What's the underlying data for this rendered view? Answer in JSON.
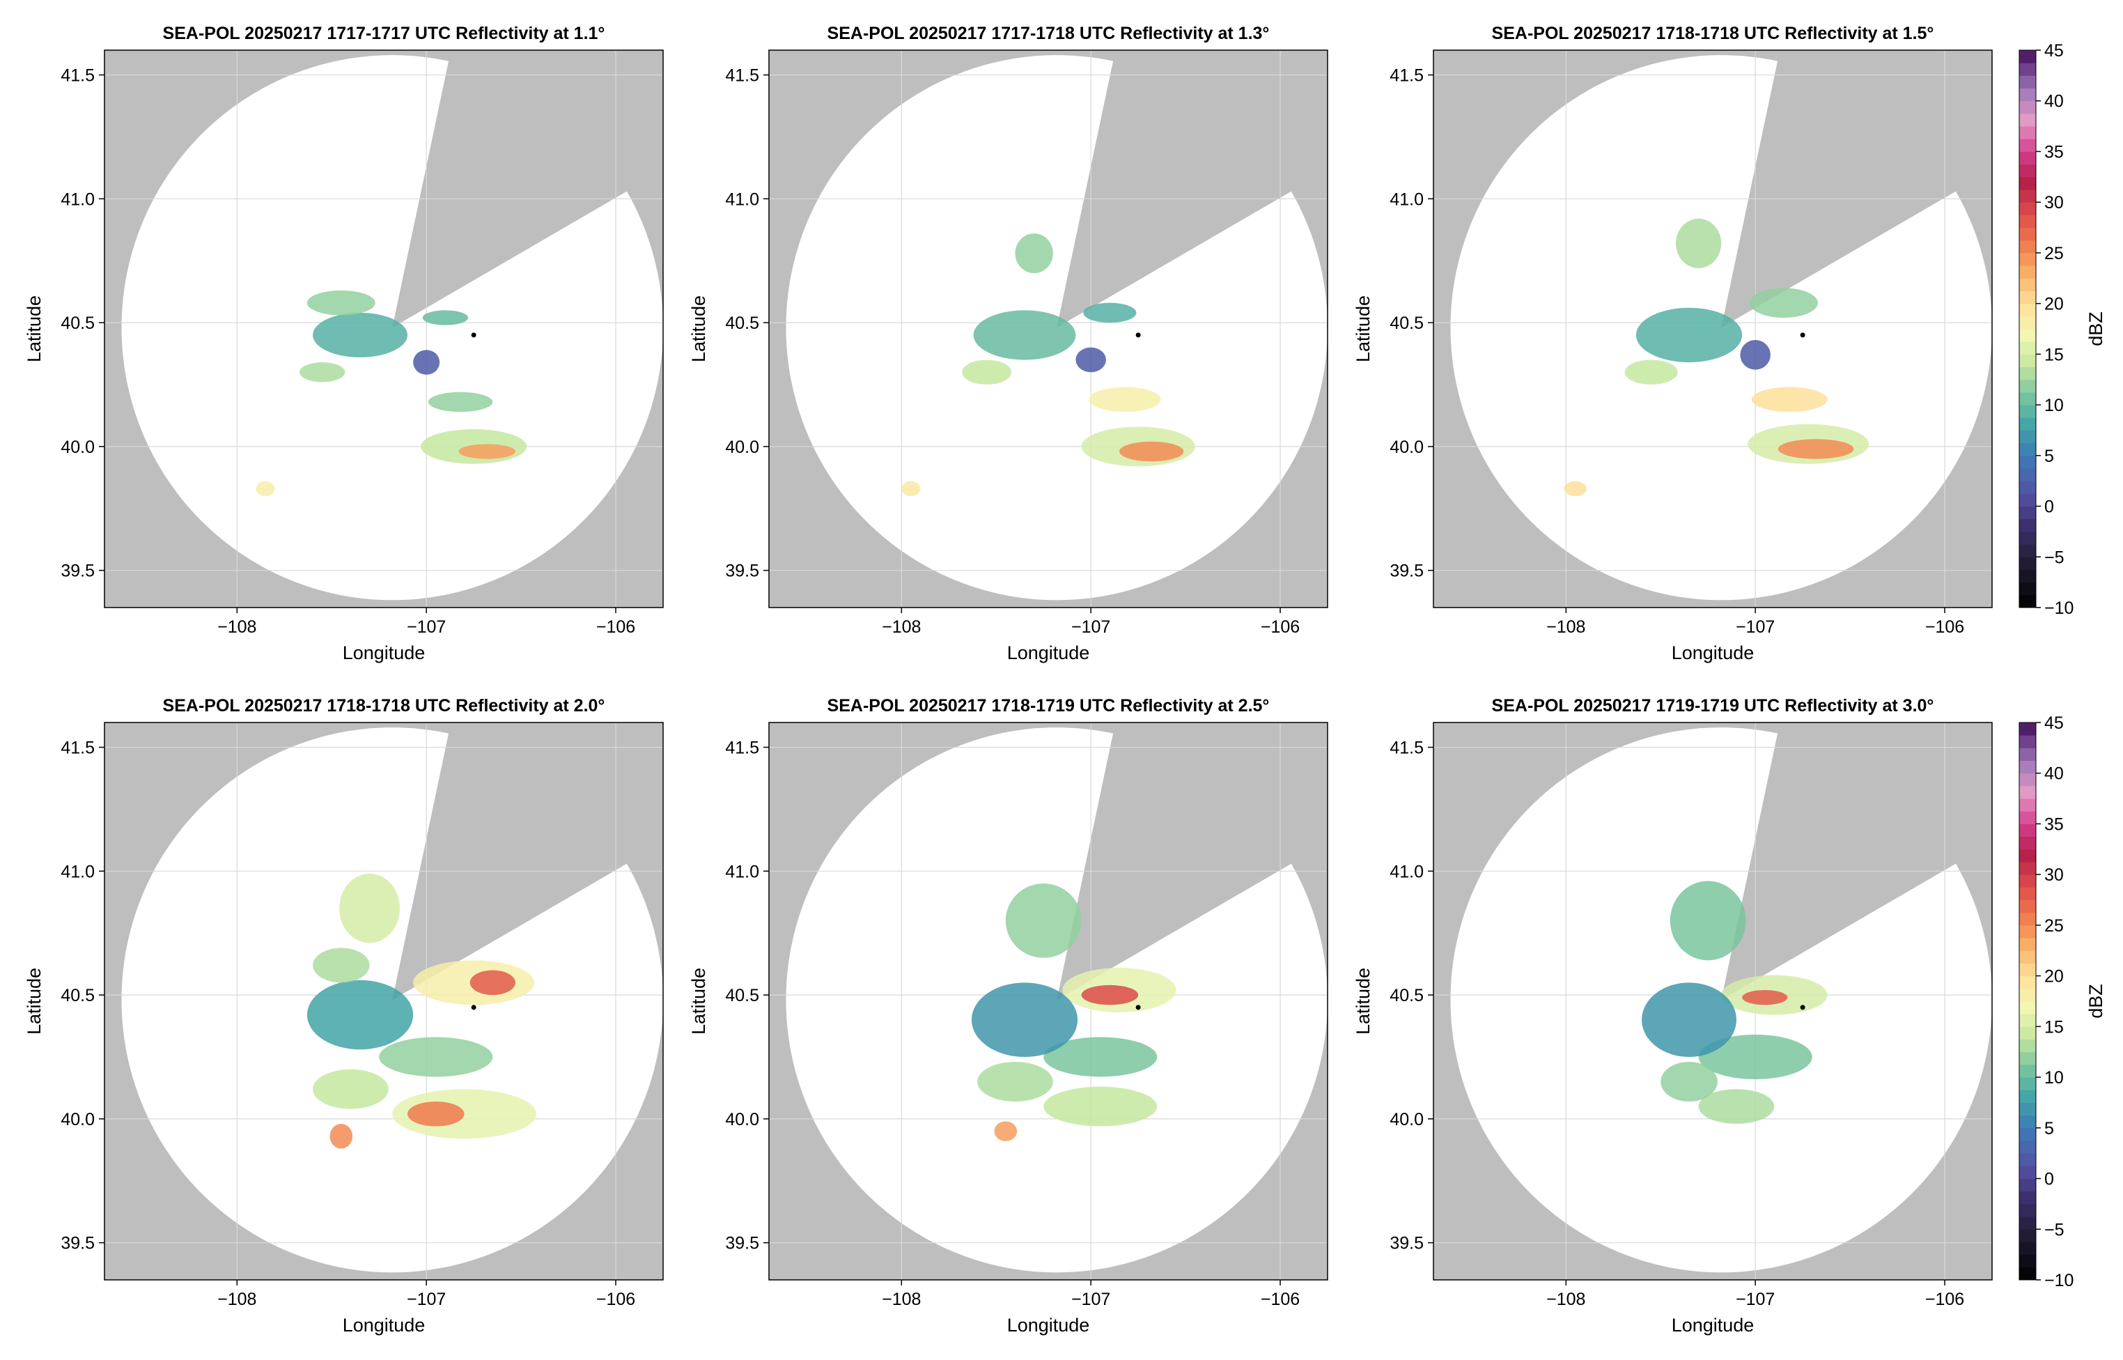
{
  "figure_title": "",
  "chart_data": [
    {
      "type": "heatmap",
      "title": "SEA-POL 20250217 1717-1717 UTC Reflectivity at 1.1°",
      "elevation_deg": 1.1,
      "xlabel": "Longitude",
      "ylabel": "Latitude",
      "xlim": [
        -108.7,
        -105.75
      ],
      "ylim": [
        39.35,
        41.6
      ],
      "xticks": [
        -108,
        -107,
        -106
      ],
      "xtick_labels": [
        "−108",
        "−107",
        "−106"
      ],
      "yticks": [
        39.5,
        40.0,
        40.5,
        41.0,
        41.5
      ],
      "ytick_labels": [
        "39.5",
        "40.0",
        "40.5",
        "41.0",
        "41.5"
      ],
      "grid": true,
      "radar_site": [
        -107.18,
        40.48
      ],
      "max_range_lon_deg": 1.43,
      "max_range_lat_deg": 1.1,
      "blocked_sectors_deg": [
        [
          12,
          60
        ]
      ],
      "point_marker": [
        -106.75,
        40.45
      ],
      "echoes": [
        {
          "lon": -106.75,
          "lat": 40.0,
          "rlon": 0.28,
          "rlat": 0.07,
          "dbz": 14
        },
        {
          "lon": -106.68,
          "lat": 39.98,
          "rlon": 0.15,
          "rlat": 0.03,
          "dbz": 24
        },
        {
          "lon": -106.82,
          "lat": 40.18,
          "rlon": 0.17,
          "rlat": 0.04,
          "dbz": 12
        },
        {
          "lon": -106.9,
          "lat": 40.52,
          "rlon": 0.12,
          "rlat": 0.03,
          "dbz": 10
        },
        {
          "lon": -107.35,
          "lat": 40.45,
          "rlon": 0.25,
          "rlat": 0.09,
          "dbz": 9
        },
        {
          "lon": -107.45,
          "lat": 40.58,
          "rlon": 0.18,
          "rlat": 0.05,
          "dbz": 12
        },
        {
          "lon": -107.55,
          "lat": 40.3,
          "rlon": 0.12,
          "rlat": 0.04,
          "dbz": 13
        },
        {
          "lon": -107.0,
          "lat": 40.34,
          "rlon": 0.07,
          "rlat": 0.05,
          "dbz": 2
        },
        {
          "lon": -107.85,
          "lat": 39.83,
          "rlon": 0.05,
          "rlat": 0.03,
          "dbz": 18
        }
      ]
    },
    {
      "type": "heatmap",
      "title": "SEA-POL 20250217 1717-1718 UTC Reflectivity at 1.3°",
      "elevation_deg": 1.3,
      "xlabel": "Longitude",
      "ylabel": "Latitude",
      "xlim": [
        -108.7,
        -105.75
      ],
      "ylim": [
        39.35,
        41.6
      ],
      "xticks": [
        -108,
        -107,
        -106
      ],
      "xtick_labels": [
        "−108",
        "−107",
        "−106"
      ],
      "yticks": [
        39.5,
        40.0,
        40.5,
        41.0,
        41.5
      ],
      "ytick_labels": [
        "39.5",
        "40.0",
        "40.5",
        "41.0",
        "41.5"
      ],
      "grid": true,
      "radar_site": [
        -107.18,
        40.48
      ],
      "max_range_lon_deg": 1.43,
      "max_range_lat_deg": 1.1,
      "blocked_sectors_deg": [
        [
          12,
          60
        ]
      ],
      "point_marker": [
        -106.75,
        40.45
      ],
      "echoes": [
        {
          "lon": -106.75,
          "lat": 40.0,
          "rlon": 0.3,
          "rlat": 0.08,
          "dbz": 15
        },
        {
          "lon": -106.68,
          "lat": 39.98,
          "rlon": 0.17,
          "rlat": 0.04,
          "dbz": 25
        },
        {
          "lon": -106.82,
          "lat": 40.19,
          "rlon": 0.19,
          "rlat": 0.05,
          "dbz": 18
        },
        {
          "lon": -106.9,
          "lat": 40.54,
          "rlon": 0.14,
          "rlat": 0.04,
          "dbz": 9
        },
        {
          "lon": -107.35,
          "lat": 40.45,
          "rlon": 0.27,
          "rlat": 0.1,
          "dbz": 10
        },
        {
          "lon": -107.3,
          "lat": 40.78,
          "rlon": 0.1,
          "rlat": 0.08,
          "dbz": 12
        },
        {
          "lon": -107.55,
          "lat": 40.3,
          "rlon": 0.13,
          "rlat": 0.05,
          "dbz": 14
        },
        {
          "lon": -107.0,
          "lat": 40.35,
          "rlon": 0.08,
          "rlat": 0.05,
          "dbz": 2
        },
        {
          "lon": -107.95,
          "lat": 39.83,
          "rlon": 0.05,
          "rlat": 0.03,
          "dbz": 19
        }
      ]
    },
    {
      "type": "heatmap",
      "title": "SEA-POL 20250217 1718-1718 UTC Reflectivity at 1.5°",
      "elevation_deg": 1.5,
      "xlabel": "Longitude",
      "ylabel": "Latitude",
      "xlim": [
        -108.7,
        -105.75
      ],
      "ylim": [
        39.35,
        41.6
      ],
      "xticks": [
        -108,
        -107,
        -106
      ],
      "xtick_labels": [
        "−108",
        "−107",
        "−106"
      ],
      "yticks": [
        39.5,
        40.0,
        40.5,
        41.0,
        41.5
      ],
      "ytick_labels": [
        "39.5",
        "40.0",
        "40.5",
        "41.0",
        "41.5"
      ],
      "grid": true,
      "radar_site": [
        -107.18,
        40.48
      ],
      "max_range_lon_deg": 1.43,
      "max_range_lat_deg": 1.1,
      "blocked_sectors_deg": [
        [
          12,
          60
        ]
      ],
      "point_marker": [
        -106.75,
        40.45
      ],
      "echoes": [
        {
          "lon": -106.72,
          "lat": 40.01,
          "rlon": 0.32,
          "rlat": 0.08,
          "dbz": 15
        },
        {
          "lon": -106.68,
          "lat": 39.99,
          "rlon": 0.2,
          "rlat": 0.04,
          "dbz": 25
        },
        {
          "lon": -106.82,
          "lat": 40.19,
          "rlon": 0.2,
          "rlat": 0.05,
          "dbz": 20
        },
        {
          "lon": -106.85,
          "lat": 40.58,
          "rlon": 0.18,
          "rlat": 0.06,
          "dbz": 12
        },
        {
          "lon": -107.35,
          "lat": 40.45,
          "rlon": 0.28,
          "rlat": 0.11,
          "dbz": 9
        },
        {
          "lon": -107.3,
          "lat": 40.82,
          "rlon": 0.12,
          "rlat": 0.1,
          "dbz": 13
        },
        {
          "lon": -107.55,
          "lat": 40.3,
          "rlon": 0.14,
          "rlat": 0.05,
          "dbz": 14
        },
        {
          "lon": -107.0,
          "lat": 40.37,
          "rlon": 0.08,
          "rlat": 0.06,
          "dbz": 2
        },
        {
          "lon": -107.95,
          "lat": 39.83,
          "rlon": 0.06,
          "rlat": 0.03,
          "dbz": 20
        }
      ]
    },
    {
      "type": "heatmap",
      "title": "SEA-POL 20250217 1718-1718 UTC Reflectivity at 2.0°",
      "elevation_deg": 2.0,
      "xlabel": "Longitude",
      "ylabel": "Latitude",
      "xlim": [
        -108.7,
        -105.75
      ],
      "ylim": [
        39.35,
        41.6
      ],
      "xticks": [
        -108,
        -107,
        -106
      ],
      "xtick_labels": [
        "−108",
        "−107",
        "−106"
      ],
      "yticks": [
        39.5,
        40.0,
        40.5,
        41.0,
        41.5
      ],
      "ytick_labels": [
        "39.5",
        "40.0",
        "40.5",
        "41.0",
        "41.5"
      ],
      "grid": true,
      "radar_site": [
        -107.18,
        40.48
      ],
      "max_range_lon_deg": 1.43,
      "max_range_lat_deg": 1.1,
      "blocked_sectors_deg": [
        [
          12,
          60
        ]
      ],
      "point_marker": [
        -106.75,
        40.45
      ],
      "echoes": [
        {
          "lon": -106.8,
          "lat": 40.02,
          "rlon": 0.38,
          "rlat": 0.1,
          "dbz": 16
        },
        {
          "lon": -106.95,
          "lat": 40.02,
          "rlon": 0.15,
          "rlat": 0.05,
          "dbz": 26
        },
        {
          "lon": -106.95,
          "lat": 40.25,
          "rlon": 0.3,
          "rlat": 0.08,
          "dbz": 12
        },
        {
          "lon": -106.75,
          "lat": 40.55,
          "rlon": 0.32,
          "rlat": 0.09,
          "dbz": 18
        },
        {
          "lon": -106.65,
          "lat": 40.55,
          "rlon": 0.12,
          "rlat": 0.05,
          "dbz": 28
        },
        {
          "lon": -107.35,
          "lat": 40.42,
          "rlon": 0.28,
          "rlat": 0.14,
          "dbz": 8
        },
        {
          "lon": -107.3,
          "lat": 40.85,
          "rlon": 0.16,
          "rlat": 0.14,
          "dbz": 15
        },
        {
          "lon": -107.45,
          "lat": 40.62,
          "rlon": 0.15,
          "rlat": 0.07,
          "dbz": 13
        },
        {
          "lon": -107.4,
          "lat": 40.12,
          "rlon": 0.2,
          "rlat": 0.08,
          "dbz": 14
        },
        {
          "lon": -107.45,
          "lat": 39.93,
          "rlon": 0.06,
          "rlat": 0.05,
          "dbz": 25
        }
      ]
    },
    {
      "type": "heatmap",
      "title": "SEA-POL 20250217 1718-1719 UTC Reflectivity at 2.5°",
      "elevation_deg": 2.5,
      "xlabel": "Longitude",
      "ylabel": "Latitude",
      "xlim": [
        -108.7,
        -105.75
      ],
      "ylim": [
        39.35,
        41.6
      ],
      "xticks": [
        -108,
        -107,
        -106
      ],
      "xtick_labels": [
        "−108",
        "−107",
        "−106"
      ],
      "yticks": [
        39.5,
        40.0,
        40.5,
        41.0,
        41.5
      ],
      "ytick_labels": [
        "39.5",
        "40.0",
        "40.5",
        "41.0",
        "41.5"
      ],
      "grid": true,
      "radar_site": [
        -107.18,
        40.48
      ],
      "max_range_lon_deg": 1.43,
      "max_range_lat_deg": 1.1,
      "blocked_sectors_deg": [
        [
          12,
          60
        ]
      ],
      "point_marker": [
        -106.75,
        40.45
      ],
      "echoes": [
        {
          "lon": -106.95,
          "lat": 40.05,
          "rlon": 0.3,
          "rlat": 0.08,
          "dbz": 14
        },
        {
          "lon": -106.95,
          "lat": 40.25,
          "rlon": 0.3,
          "rlat": 0.08,
          "dbz": 11
        },
        {
          "lon": -106.85,
          "lat": 40.52,
          "rlon": 0.3,
          "rlat": 0.09,
          "dbz": 16
        },
        {
          "lon": -106.9,
          "lat": 40.5,
          "rlon": 0.15,
          "rlat": 0.04,
          "dbz": 29
        },
        {
          "lon": -107.35,
          "lat": 40.4,
          "rlon": 0.28,
          "rlat": 0.15,
          "dbz": 7
        },
        {
          "lon": -107.25,
          "lat": 40.8,
          "rlon": 0.2,
          "rlat": 0.15,
          "dbz": 12
        },
        {
          "lon": -107.4,
          "lat": 40.15,
          "rlon": 0.2,
          "rlat": 0.08,
          "dbz": 13
        },
        {
          "lon": -107.45,
          "lat": 39.95,
          "rlon": 0.06,
          "rlat": 0.04,
          "dbz": 24
        }
      ]
    },
    {
      "type": "heatmap",
      "title": "SEA-POL 20250217 1719-1719 UTC Reflectivity at 3.0°",
      "elevation_deg": 3.0,
      "xlabel": "Longitude",
      "ylabel": "Latitude",
      "xlim": [
        -108.7,
        -105.75
      ],
      "ylim": [
        39.35,
        41.6
      ],
      "xticks": [
        -108,
        -107,
        -106
      ],
      "xtick_labels": [
        "−108",
        "−107",
        "−106"
      ],
      "yticks": [
        39.5,
        40.0,
        40.5,
        41.0,
        41.5
      ],
      "ytick_labels": [
        "39.5",
        "40.0",
        "40.5",
        "41.0",
        "41.5"
      ],
      "grid": true,
      "radar_site": [
        -107.18,
        40.48
      ],
      "max_range_lon_deg": 1.43,
      "max_range_lat_deg": 1.1,
      "blocked_sectors_deg": [
        [
          12,
          60
        ]
      ],
      "point_marker": [
        -106.75,
        40.45
      ],
      "echoes": [
        {
          "lon": -107.1,
          "lat": 40.05,
          "rlon": 0.2,
          "rlat": 0.07,
          "dbz": 13
        },
        {
          "lon": -107.0,
          "lat": 40.25,
          "rlon": 0.3,
          "rlat": 0.09,
          "dbz": 11
        },
        {
          "lon": -106.9,
          "lat": 40.5,
          "rlon": 0.28,
          "rlat": 0.08,
          "dbz": 15
        },
        {
          "lon": -106.95,
          "lat": 40.49,
          "rlon": 0.12,
          "rlat": 0.03,
          "dbz": 28
        },
        {
          "lon": -107.35,
          "lat": 40.4,
          "rlon": 0.25,
          "rlat": 0.15,
          "dbz": 7
        },
        {
          "lon": -107.25,
          "lat": 40.8,
          "rlon": 0.2,
          "rlat": 0.16,
          "dbz": 11
        },
        {
          "lon": -107.35,
          "lat": 40.15,
          "rlon": 0.15,
          "rlat": 0.08,
          "dbz": 12
        }
      ]
    }
  ],
  "colorbar": {
    "label": "dBZ",
    "min": -10,
    "max": 45,
    "ticks": [
      -10,
      -5,
      0,
      5,
      10,
      15,
      20,
      25,
      30,
      35,
      40,
      45
    ],
    "tick_labels": [
      "−10",
      "−5",
      "0",
      "5",
      "10",
      "15",
      "20",
      "25",
      "30",
      "35",
      "40",
      "45"
    ],
    "colormap": [
      {
        "v": -10,
        "c": "#000000"
      },
      {
        "v": -5,
        "c": "#26203a"
      },
      {
        "v": -2,
        "c": "#3c2f6e"
      },
      {
        "v": 1,
        "c": "#5450a0"
      },
      {
        "v": 5,
        "c": "#3d7bb6"
      },
      {
        "v": 8,
        "c": "#42a5a6"
      },
      {
        "v": 11,
        "c": "#7ac59f"
      },
      {
        "v": 14,
        "c": "#c6e7a0"
      },
      {
        "v": 17,
        "c": "#f3f7b4"
      },
      {
        "v": 20,
        "c": "#fde09a"
      },
      {
        "v": 23,
        "c": "#f9b066"
      },
      {
        "v": 26,
        "c": "#f0794d"
      },
      {
        "v": 29,
        "c": "#dc4a4a"
      },
      {
        "v": 32,
        "c": "#b51f4a"
      },
      {
        "v": 35,
        "c": "#d3408e"
      },
      {
        "v": 38,
        "c": "#e49ac6"
      },
      {
        "v": 41,
        "c": "#a17ab8"
      },
      {
        "v": 44,
        "c": "#5e2a7c"
      },
      {
        "v": 45,
        "c": "#3c0c4c"
      }
    ]
  },
  "colors": {
    "missing": "#bebebe",
    "background": "#ffffff",
    "grid": "#d9d9d9",
    "marker": "#000000"
  }
}
